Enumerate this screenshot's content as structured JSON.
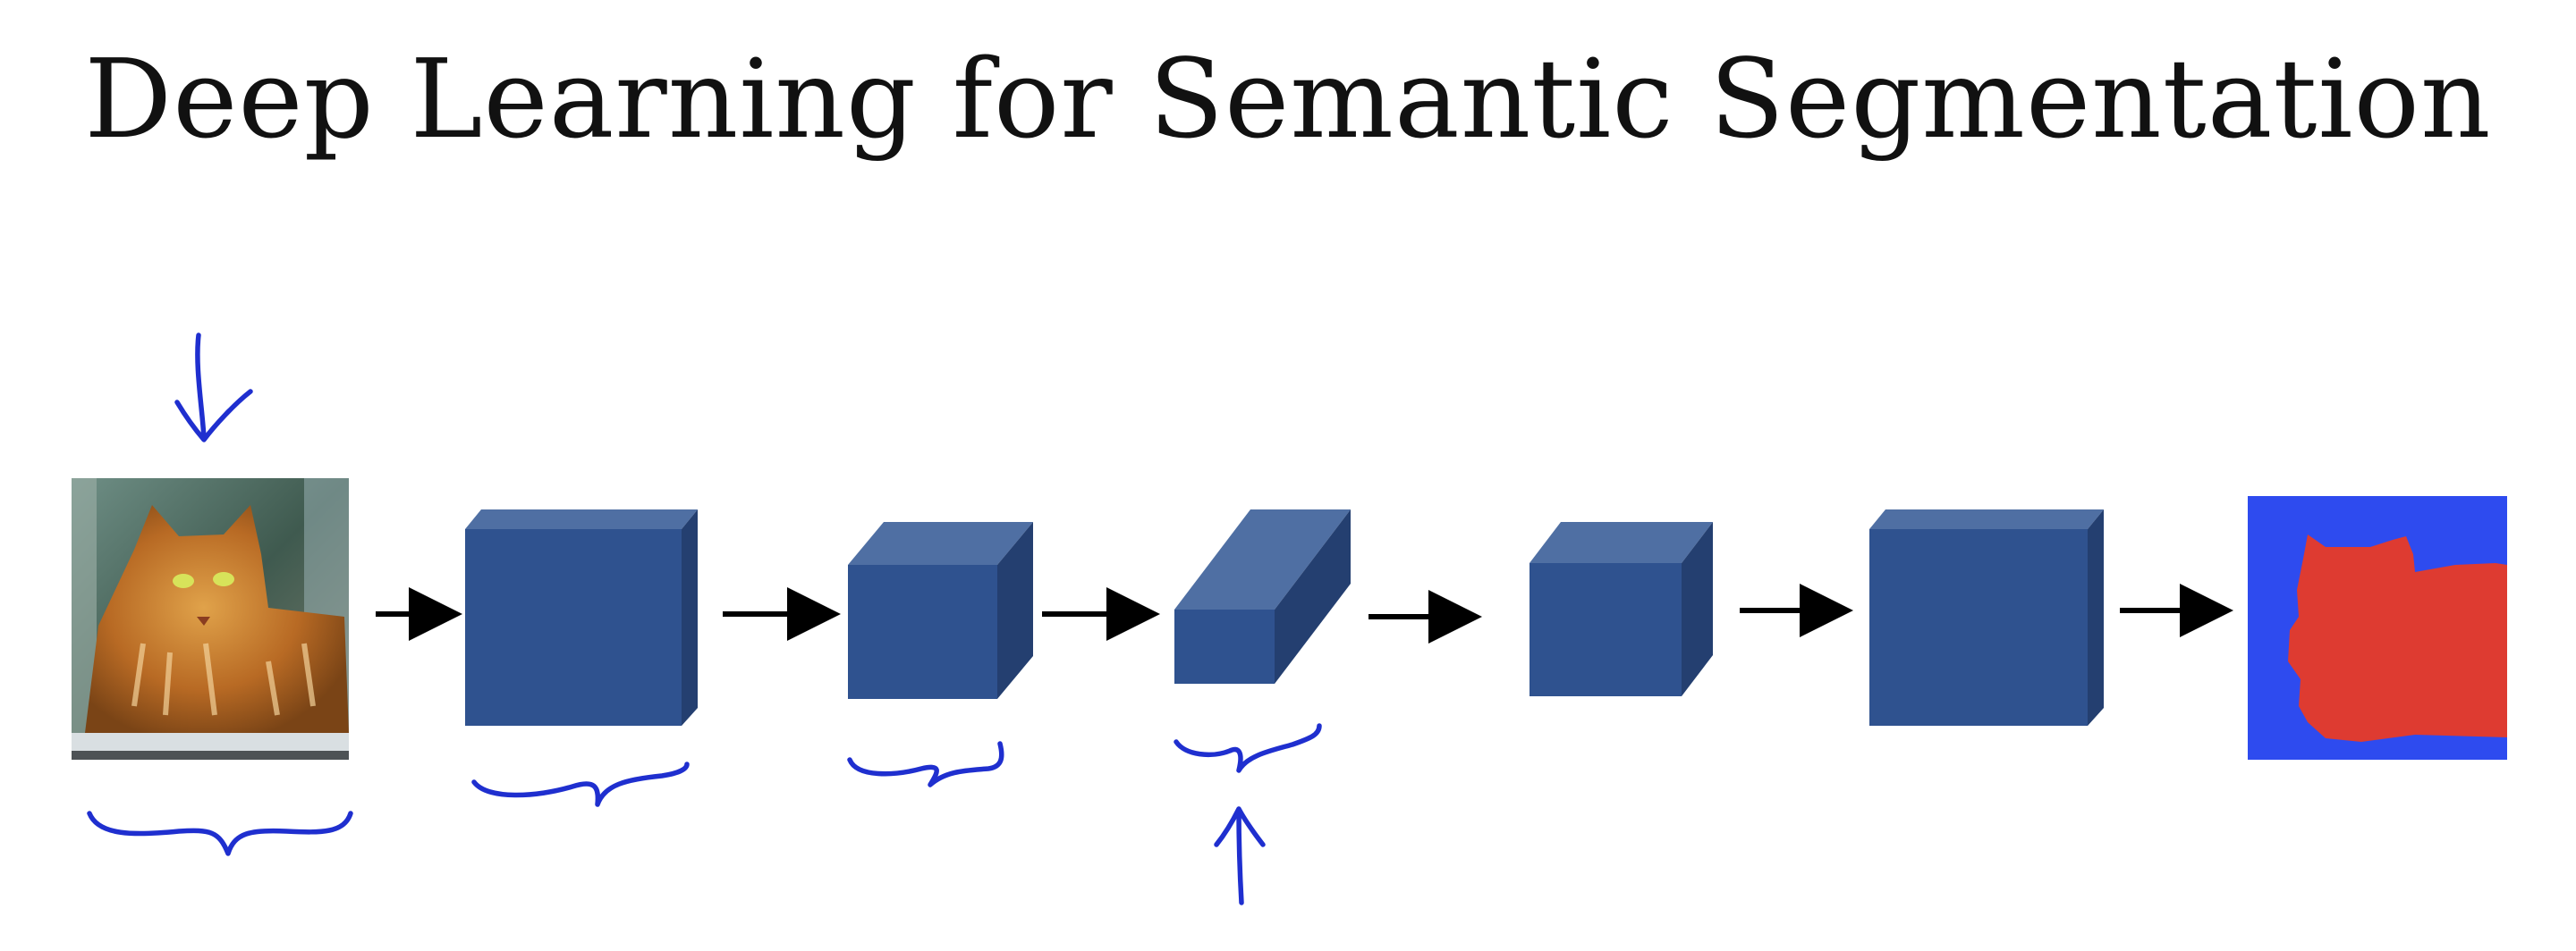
{
  "slide": {
    "title": "Deep Learning for Semantic Segmentation"
  },
  "colors": {
    "block_front": "#2f528f",
    "block_top": "#4f6fa3",
    "block_side": "#243f70",
    "ink": "#1f2fcf",
    "arrow": "#000000",
    "mask_background": "#2e4bef",
    "mask_foreground": "#de3b31"
  },
  "diagram": {
    "input": {
      "icon": "cat-photo"
    },
    "output": {
      "icon": "segmentation-mask",
      "classes": [
        "cat",
        "background"
      ]
    },
    "blocks": [
      {
        "name": "layer-1"
      },
      {
        "name": "layer-2"
      },
      {
        "name": "bottleneck-layer"
      },
      {
        "name": "layer-4"
      },
      {
        "name": "layer-5"
      }
    ],
    "annotations": [
      "down-arrow",
      "up-arrow",
      "braces"
    ]
  }
}
